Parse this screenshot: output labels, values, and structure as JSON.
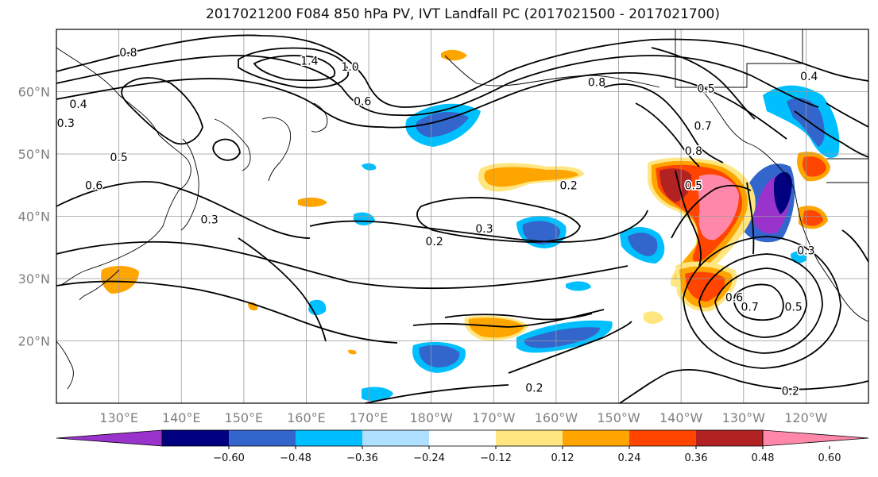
{
  "title": "2017021200 F084 850 hPa PV, IVT Landfall PC (2017021500 - 2017021700)",
  "map": {
    "lat_labels": [
      {
        "text": "60°N",
        "lat": 60
      },
      {
        "text": "50°N",
        "lat": 50
      },
      {
        "text": "40°N",
        "lat": 40
      },
      {
        "text": "30°N",
        "lat": 30
      },
      {
        "text": "20°N",
        "lat": 20
      }
    ],
    "lon_labels": [
      {
        "text": "130°E",
        "lon": 130
      },
      {
        "text": "140°E",
        "lon": 140
      },
      {
        "text": "150°E",
        "lon": 150
      },
      {
        "text": "160°E",
        "lon": 160
      },
      {
        "text": "170°E",
        "lon": 170
      },
      {
        "text": "180°W",
        "lon": 180
      },
      {
        "text": "170°W",
        "lon": 190
      },
      {
        "text": "160°W",
        "lon": 200
      },
      {
        "text": "150°W",
        "lon": 210
      },
      {
        "text": "140°W",
        "lon": 220
      },
      {
        "text": "130°W",
        "lon": 230
      },
      {
        "text": "120°W",
        "lon": 240
      }
    ],
    "extent": {
      "lon_min": 120,
      "lon_max": 250,
      "lat_min": 10,
      "lat_max": 70
    },
    "gridlines": true,
    "contour_labels": [
      {
        "text": "0.8",
        "lon": 131.5,
        "lat": 66.3
      },
      {
        "text": "1.4",
        "lon": 160.5,
        "lat": 65
      },
      {
        "text": "1.0",
        "lon": 167,
        "lat": 64
      },
      {
        "text": "0.6",
        "lon": 169,
        "lat": 58.5
      },
      {
        "text": "0.8",
        "lon": 206.5,
        "lat": 61.5
      },
      {
        "text": "0.5",
        "lon": 224,
        "lat": 60.5
      },
      {
        "text": "0.7",
        "lon": 223.5,
        "lat": 54.5
      },
      {
        "text": "0.8",
        "lon": 222,
        "lat": 50.5
      },
      {
        "text": "0.4",
        "lon": 240.5,
        "lat": 62.5
      },
      {
        "text": "0.3",
        "lon": 121.5,
        "lat": 55
      },
      {
        "text": "0.4",
        "lon": 123.5,
        "lat": 58
      },
      {
        "text": "0.5",
        "lon": 130,
        "lat": 49.5
      },
      {
        "text": "0.6",
        "lon": 126,
        "lat": 45
      },
      {
        "text": "0.3",
        "lon": 144.5,
        "lat": 39.5
      },
      {
        "text": "0.2",
        "lon": 202,
        "lat": 45
      },
      {
        "text": "0.5",
        "lon": 222,
        "lat": 45
      },
      {
        "text": "0.2",
        "lon": 180.5,
        "lat": 36
      },
      {
        "text": "0.3",
        "lon": 188.5,
        "lat": 38
      },
      {
        "text": "0.6",
        "lon": 228.5,
        "lat": 27
      },
      {
        "text": "0.7",
        "lon": 231,
        "lat": 25.5
      },
      {
        "text": "0.5",
        "lon": 238,
        "lat": 25.5
      },
      {
        "text": "0.3",
        "lon": 240,
        "lat": 34.5
      },
      {
        "text": "0.2",
        "lon": 196.5,
        "lat": 12.5
      },
      {
        "text": "0.2",
        "lon": 237.5,
        "lat": 12
      }
    ]
  },
  "colorbar": {
    "tick_labels": [
      "−0.60",
      "−0.48",
      "−0.36",
      "−0.24",
      "−0.12",
      "0.12",
      "0.24",
      "0.36",
      "0.48",
      "0.60"
    ],
    "colors": [
      "#9933cc",
      "#000080",
      "#3366cc",
      "#00bfff",
      "#b0e0ff",
      "#ffffff",
      "#ffe680",
      "#ffa500",
      "#ff4500",
      "#b22222",
      "#ff88aa"
    ]
  },
  "colors": {
    "grid": "#999999",
    "contour": "#000000",
    "coast": "#000000"
  }
}
